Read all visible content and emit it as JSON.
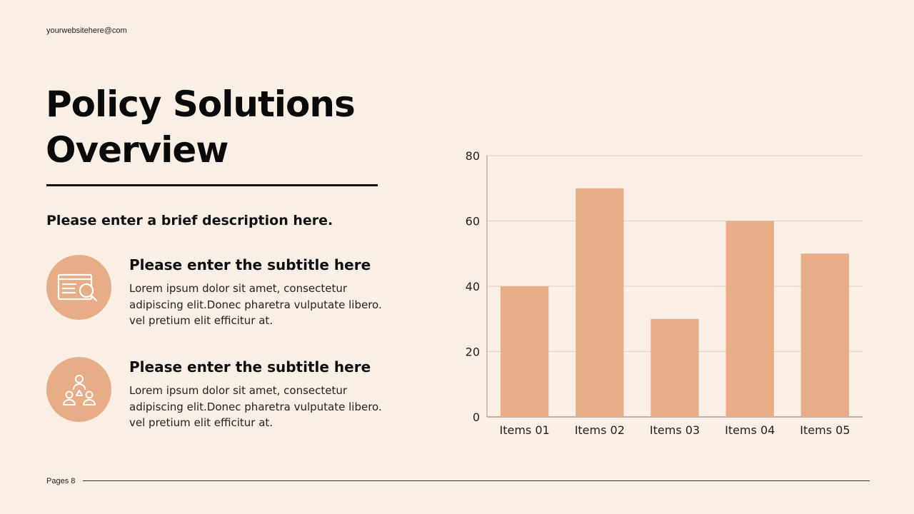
{
  "header": {
    "website": "yourwebsitehere@com"
  },
  "title": {
    "line1": "Policy Solutions",
    "line2": "Overview"
  },
  "description": "Please enter a brief description here.",
  "features": [
    {
      "icon": "document-search-icon",
      "subtitle": "Please enter the subtitle here",
      "body_line1": "Lorem ipsum dolor sit amet, consectetur",
      "body_line2": "adipiscing elit.Donec pharetra vulputate libero.",
      "body_line3": "vel pretium elit efficitur at."
    },
    {
      "icon": "team-people-icon",
      "subtitle": "Please enter the subtitle here",
      "body_line1": "Lorem ipsum dolor sit amet, consectetur",
      "body_line2": "adipiscing elit.Donec pharetra vulputate libero.",
      "body_line3": "vel pretium elit efficitur at."
    }
  ],
  "footer": {
    "page": "Pages 8"
  },
  "colors": {
    "background": "#faefe4",
    "accent": "#e6ad87",
    "text": "#111111"
  },
  "chart_data": {
    "type": "bar",
    "categories": [
      "Items 01",
      "Items 02",
      "Items 03",
      "Items 04",
      "Items 05"
    ],
    "values": [
      40,
      70,
      30,
      60,
      50
    ],
    "yticks": [
      0,
      20,
      40,
      60,
      80
    ],
    "ylim": [
      0,
      80
    ],
    "title": "",
    "xlabel": "",
    "ylabel": "",
    "grid": true
  }
}
